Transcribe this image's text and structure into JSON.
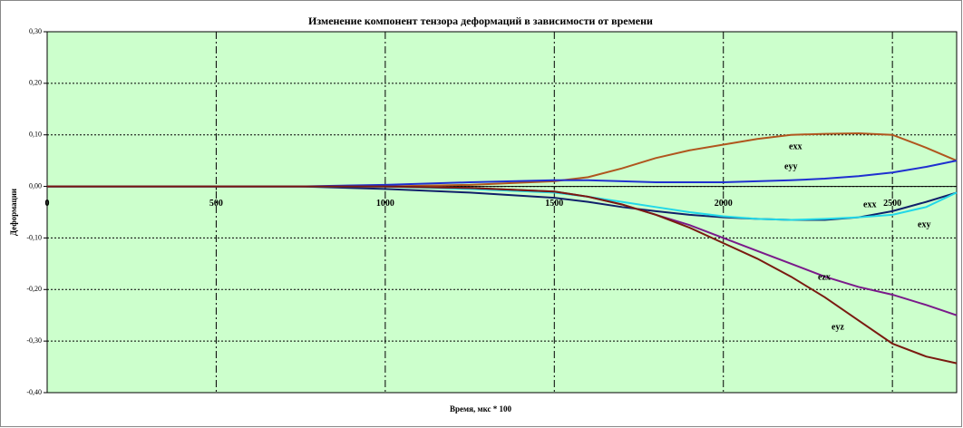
{
  "chart_data": {
    "type": "line",
    "title": "Изменение компонент тензора деформаций в зависимости от времени",
    "x_label": "Время, мкс * 100",
    "y_label": "Деформации",
    "x": [
      0,
      500,
      750,
      1000,
      1250,
      1500,
      1600,
      1700,
      1800,
      1900,
      2000,
      2100,
      2200,
      2300,
      2400,
      2500,
      2600,
      2690
    ],
    "xlim": [
      0,
      2690
    ],
    "xticks": [
      0,
      500,
      1000,
      1500,
      2000,
      2500
    ],
    "ylim": [
      -0.4,
      0.3
    ],
    "yticks": [
      {
        "value": 0.3,
        "label": "0,30"
      },
      {
        "value": 0.2,
        "label": "0,20"
      },
      {
        "value": 0.1,
        "label": "0,10"
      },
      {
        "value": 0,
        "label": "0,00"
      },
      {
        "value": -0.1,
        "label": "-0,10"
      },
      {
        "value": -0.2,
        "label": "-0,20"
      },
      {
        "value": -0.3,
        "label": "-0,30"
      },
      {
        "value": -0.4,
        "label": "-0,40"
      }
    ],
    "grid": true,
    "background": "#ccffcc",
    "series": [
      {
        "name": "exx",
        "color": "#b0561e",
        "values": [
          0,
          0,
          0,
          0,
          0.003,
          0.01,
          0.018,
          0.035,
          0.055,
          0.07,
          0.081,
          0.092,
          0.1,
          0.102,
          0.103,
          0.1,
          0.075,
          0.05
        ]
      },
      {
        "name": "eyy",
        "color": "#1f2fd0",
        "values": [
          0,
          0,
          0,
          0.003,
          0.008,
          0.012,
          0.012,
          0.01,
          0.008,
          0.008,
          0.008,
          0.01,
          0.012,
          0.015,
          0.02,
          0.027,
          0.038,
          0.05
        ]
      },
      {
        "name": "exx",
        "color": "#10206a",
        "values": [
          0,
          0,
          0,
          -0.005,
          -0.012,
          -0.022,
          -0.03,
          -0.04,
          -0.048,
          -0.055,
          -0.06,
          -0.063,
          -0.065,
          -0.065,
          -0.06,
          -0.048,
          -0.03,
          -0.012
        ]
      },
      {
        "name": "exy",
        "color": "#22d8e8",
        "values": [
          0,
          0,
          0,
          0,
          -0.005,
          -0.012,
          -0.02,
          -0.03,
          -0.04,
          -0.05,
          -0.058,
          -0.063,
          -0.065,
          -0.063,
          -0.06,
          -0.055,
          -0.04,
          -0.012
        ]
      },
      {
        "name": "ezx",
        "color": "#7a1a8a",
        "values": [
          0,
          0,
          0,
          0,
          -0.003,
          -0.01,
          -0.02,
          -0.035,
          -0.055,
          -0.075,
          -0.1,
          -0.125,
          -0.15,
          -0.175,
          -0.195,
          -0.21,
          -0.23,
          -0.25
        ]
      },
      {
        "name": "eyz",
        "color": "#7a1a10",
        "values": [
          0,
          0,
          0,
          0,
          -0.003,
          -0.01,
          -0.02,
          -0.035,
          -0.055,
          -0.08,
          -0.11,
          -0.14,
          -0.175,
          -0.215,
          -0.26,
          -0.305,
          -0.33,
          -0.343
        ]
      }
    ]
  }
}
